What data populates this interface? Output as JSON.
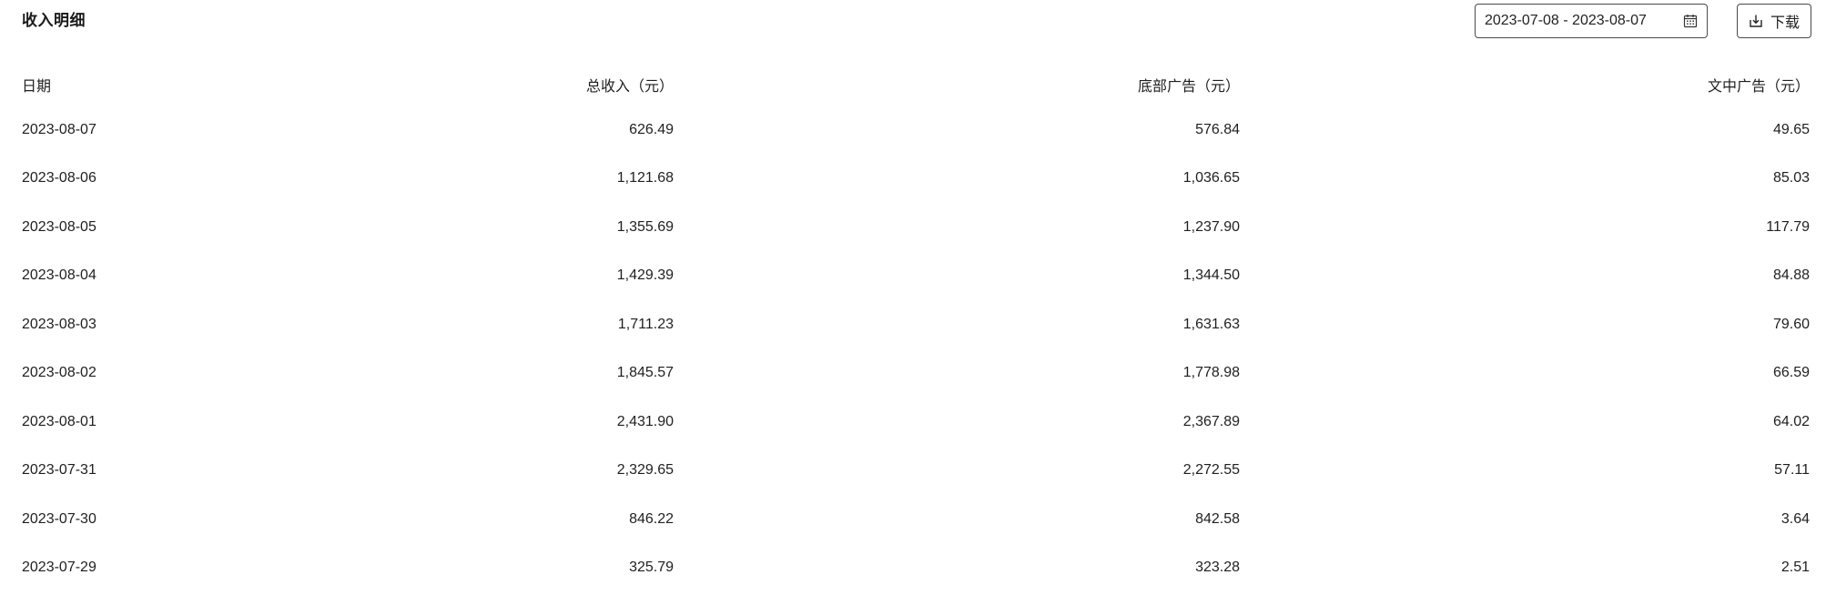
{
  "header": {
    "title": "收入明细"
  },
  "toolbar": {
    "date_range": "2023-07-08 - 2023-08-07",
    "download_label": "下载"
  },
  "table": {
    "columns": [
      "日期",
      "总收入（元）",
      "底部广告（元）",
      "文中广告（元）"
    ],
    "rows": [
      [
        "2023-08-07",
        "626.49",
        "576.84",
        "49.65"
      ],
      [
        "2023-08-06",
        "1,121.68",
        "1,036.65",
        "85.03"
      ],
      [
        "2023-08-05",
        "1,355.69",
        "1,237.90",
        "117.79"
      ],
      [
        "2023-08-04",
        "1,429.39",
        "1,344.50",
        "84.88"
      ],
      [
        "2023-08-03",
        "1,711.23",
        "1,631.63",
        "79.60"
      ],
      [
        "2023-08-02",
        "1,845.57",
        "1,778.98",
        "66.59"
      ],
      [
        "2023-08-01",
        "2,431.90",
        "2,367.89",
        "64.02"
      ],
      [
        "2023-07-31",
        "2,329.65",
        "2,272.55",
        "57.11"
      ],
      [
        "2023-07-30",
        "846.22",
        "842.58",
        "3.64"
      ],
      [
        "2023-07-29",
        "325.79",
        "323.28",
        "2.51"
      ]
    ]
  },
  "icons": {
    "calendar": "calendar-icon",
    "download": "download-icon"
  }
}
